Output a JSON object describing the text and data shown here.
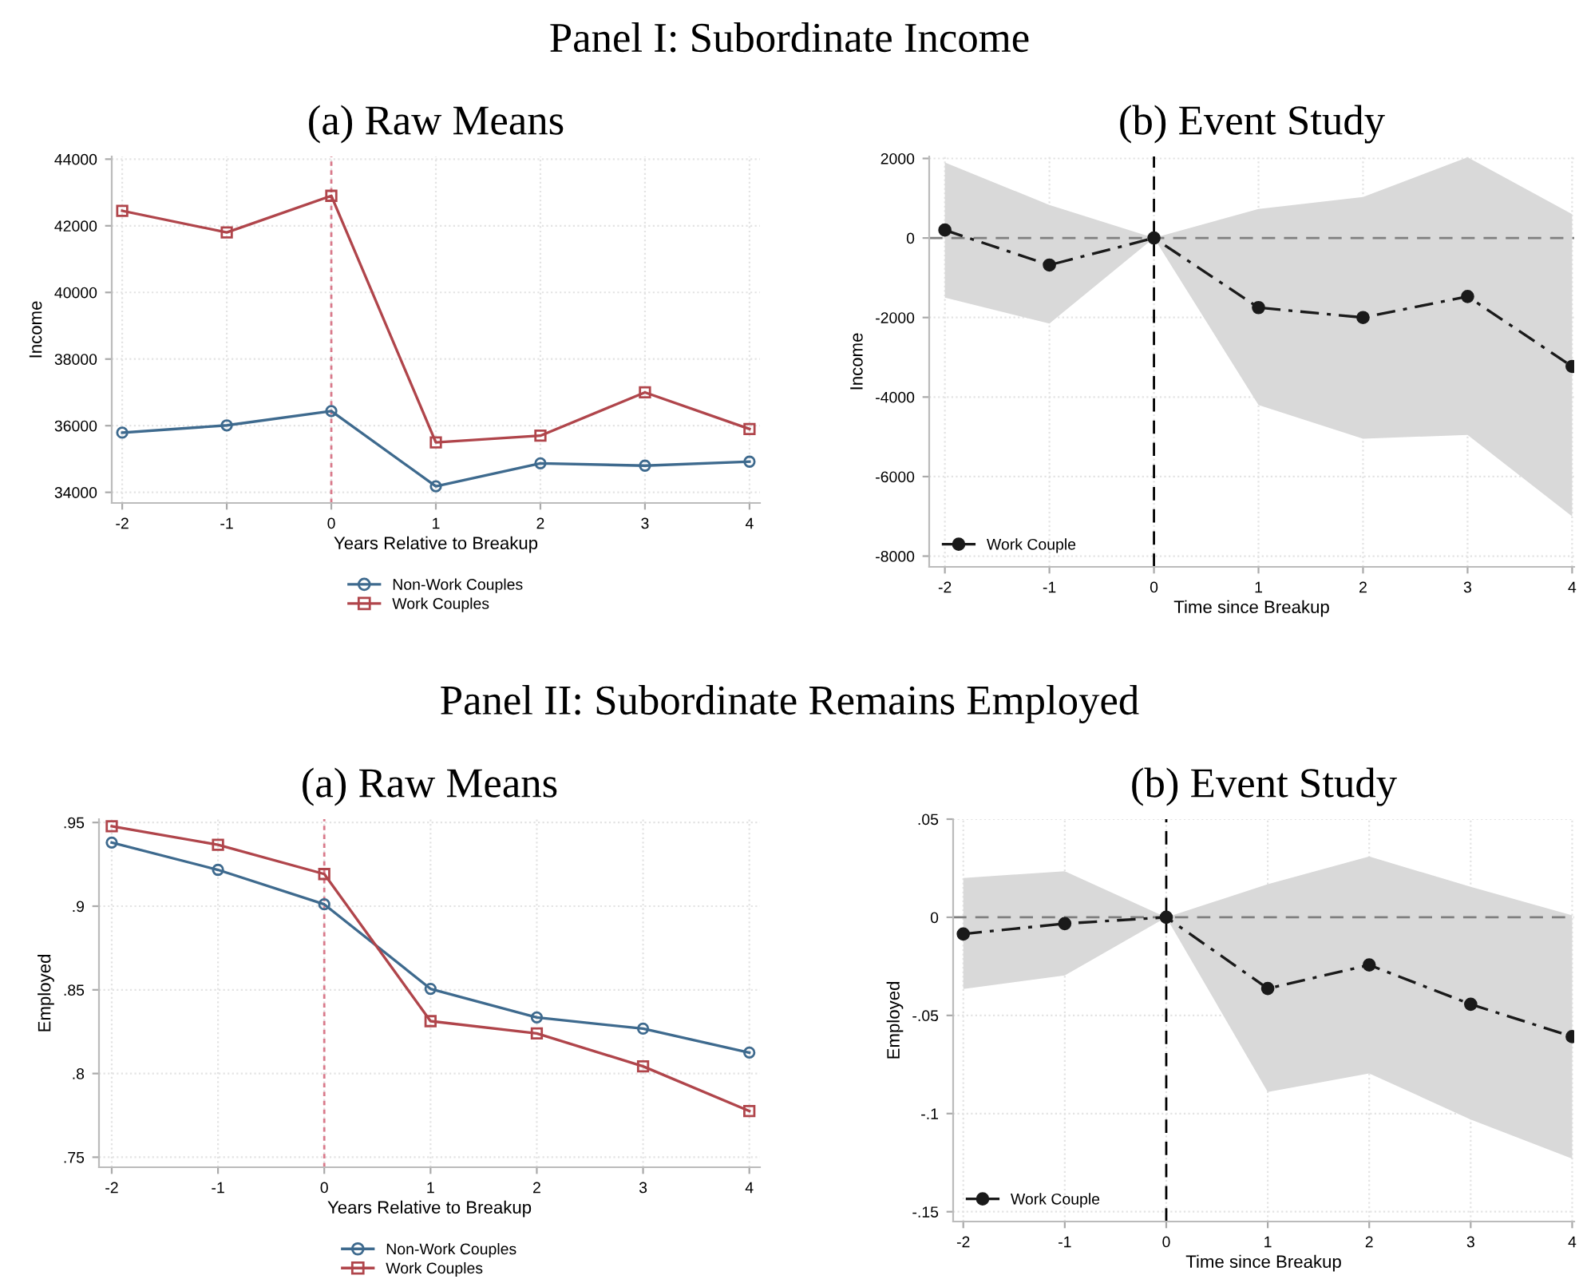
{
  "chart_data": [
    {
      "type": "line",
      "title": "(a) Raw Means",
      "annotations": [
        "Panel I: Subordinate Income"
      ],
      "xlabel": "Years Relative to Breakup",
      "ylabel": "Income",
      "x": [
        -2,
        -1,
        0,
        1,
        2,
        3,
        4
      ],
      "xlim": [
        -2.1,
        4.1
      ],
      "xticks": [
        -2,
        -1,
        0,
        1,
        2,
        3,
        4
      ],
      "ylim": [
        33680,
        44080
      ],
      "yticks": [
        34000,
        36000,
        38000,
        40000,
        42000,
        44000
      ],
      "grid": true,
      "legend": "bottom",
      "line_style": "solid",
      "series": [
        {
          "name": "Non-Work Couples",
          "color": "#3e6a8e",
          "marker": "circle",
          "values": [
            35790,
            36010,
            36440,
            34180,
            34870,
            34800,
            34920
          ]
        },
        {
          "name": "Work Couples",
          "color": "#b0454b",
          "marker": "square",
          "values": [
            42450,
            41800,
            42900,
            35500,
            35700,
            37000,
            35900
          ]
        }
      ],
      "ref_lines": [
        {
          "axis": "x",
          "value": 0,
          "color": "#d9798a",
          "line_style": "dotted"
        }
      ]
    },
    {
      "type": "line",
      "title": "(b) Event Study",
      "xlabel": "Time since Breakup",
      "ylabel": "Income",
      "x": [
        -2,
        -1,
        0,
        1,
        2,
        3,
        4
      ],
      "xlim": [
        -2.15,
        4.02
      ],
      "xticks": [
        -2,
        -1,
        0,
        1,
        2,
        3,
        4
      ],
      "ylim": [
        -8270,
        2050
      ],
      "yticks": [
        -8000,
        -6000,
        -4000,
        -2000,
        0,
        2000
      ],
      "grid": true,
      "legend": "bottom left",
      "line_style": "dashed",
      "marker": "circle",
      "series": [
        {
          "name": "Work Couple",
          "color": "#1a1a1a",
          "values": [
            200,
            -680,
            0,
            -1750,
            -2000,
            -1470,
            -3230
          ],
          "lower": [
            -1500,
            -2150,
            0,
            -4200,
            -5050,
            -4950,
            -7000
          ],
          "upper": [
            1900,
            830,
            0,
            730,
            1030,
            2030,
            600
          ]
        }
      ],
      "ref_lines": [
        {
          "axis": "y",
          "value": 0,
          "color": "#7f7f7f",
          "line_style": "dashed"
        },
        {
          "axis": "x",
          "value": 0,
          "color": "#000000",
          "line_style": "dashed"
        }
      ]
    },
    {
      "type": "line",
      "title": "(a) Raw Means",
      "annotations": [
        "Panel II: Subordinate Remains Employed"
      ],
      "xlabel": "Years Relative to Breakup",
      "ylabel": "Employed",
      "x": [
        -2,
        -1,
        0,
        1,
        2,
        3,
        4
      ],
      "xlim": [
        -2.12,
        4.1
      ],
      "xticks": [
        -2,
        -1,
        0,
        1,
        2,
        3,
        4
      ],
      "ylim": [
        0.744,
        0.952
      ],
      "yticks": [
        {
          "value": 0.75,
          "label": ".75"
        },
        {
          "value": 0.8,
          "label": ".8"
        },
        {
          "value": 0.85,
          "label": ".85"
        },
        {
          "value": 0.9,
          "label": ".9"
        },
        {
          "value": 0.95,
          "label": ".95"
        }
      ],
      "grid": true,
      "legend": "bottom",
      "line_style": "solid",
      "series": [
        {
          "name": "Non-Work Couples",
          "color": "#3e6a8e",
          "marker": "circle",
          "values": [
            0.938,
            0.9217,
            0.9011,
            0.8506,
            0.8335,
            0.8268,
            0.8125
          ]
        },
        {
          "name": "Work Couples",
          "color": "#b0454b",
          "marker": "square",
          "values": [
            0.9478,
            0.9367,
            0.9192,
            0.8313,
            0.824,
            0.8043,
            0.7776
          ]
        }
      ],
      "ref_lines": [
        {
          "axis": "x",
          "value": 0,
          "color": "#d9798a",
          "line_style": "dotted"
        }
      ]
    },
    {
      "type": "line",
      "title": "(b) Event Study",
      "xlabel": "Time since Breakup",
      "ylabel": "Employed",
      "x": [
        -2,
        -1,
        0,
        1,
        2,
        3,
        4
      ],
      "xlim": [
        -2.1,
        4.02
      ],
      "xticks": [
        -2,
        -1,
        0,
        1,
        2,
        3,
        4
      ],
      "ylim": [
        -0.155,
        0.05
      ],
      "yticks": [
        {
          "value": -0.15,
          "label": "-.15"
        },
        {
          "value": -0.1,
          "label": "-.1"
        },
        {
          "value": -0.05,
          "label": "-.05"
        },
        0,
        {
          "value": 0.05,
          "label": ".05"
        }
      ],
      "grid": true,
      "legend": "bottom left",
      "line_style": "dashed",
      "marker": "circle",
      "series": [
        {
          "name": "Work Couple",
          "color": "#1a1a1a",
          "values": [
            -0.0085,
            -0.0032,
            0,
            -0.0363,
            -0.0243,
            -0.0443,
            -0.0608
          ],
          "lower": [
            -0.0365,
            -0.0296,
            0,
            -0.089,
            -0.0795,
            -0.103,
            -0.123
          ],
          "upper": [
            0.02,
            0.0235,
            0,
            0.0168,
            0.031,
            0.0155,
            0.001
          ]
        }
      ],
      "ref_lines": [
        {
          "axis": "y",
          "value": 0,
          "color": "#7f7f7f",
          "line_style": "dashed"
        },
        {
          "axis": "x",
          "value": 0,
          "color": "#000000",
          "line_style": "dashed"
        }
      ]
    }
  ]
}
